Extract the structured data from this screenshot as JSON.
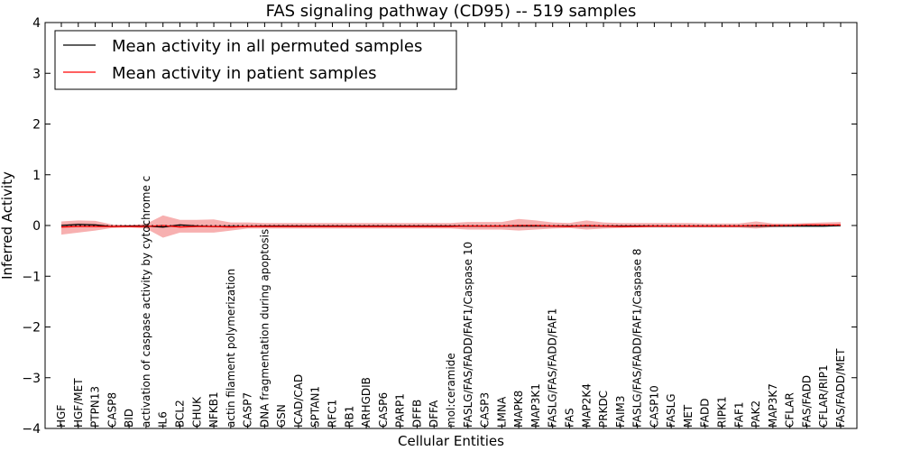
{
  "chart_data": {
    "type": "line",
    "title": "FAS signaling pathway (CD95) -- 519 samples",
    "xlabel": "Cellular Entities",
    "ylabel": "Inferred Activity",
    "ylim": [
      -4,
      4
    ],
    "yticks": [
      "−4",
      "−3",
      "−2",
      "−1",
      "0",
      "1",
      "2",
      "3",
      "4"
    ],
    "ytick_values": [
      -4,
      -3,
      -2,
      -1,
      0,
      1,
      2,
      3,
      4
    ],
    "categories": [
      "HGF",
      "HGF/MET",
      "PTPN13",
      "CASP8",
      "BID",
      "activation of caspase activity by cytochrome c",
      "IL6",
      "BCL2",
      "CHUK",
      "NFKB1",
      "actin filament polymerization",
      "CASP7",
      "DNA fragmentation during apoptosis",
      "GSN",
      "ICAD/CAD",
      "SPTAN1",
      "RFC1",
      "RB1",
      "ARHGDIB",
      "CASP6",
      "PARP1",
      "DFFB",
      "DFFA",
      "mol:ceramide",
      "FASLG/FAS/FADD/FAF1/Caspase 10",
      "CASP3",
      "LMNA",
      "MAPK8",
      "MAP3K1",
      "FASLG/FAS/FADD/FAF1",
      "FAS",
      "MAP2K4",
      "PRKDC",
      "FAIM3",
      "FASLG/FAS/FADD/FAF1/Caspase 8",
      "CASP10",
      "FASLG",
      "MET",
      "FADD",
      "RIPK1",
      "FAF1",
      "PAK2",
      "MAP3K7",
      "CFLAR",
      "FAS/FADD",
      "CFLAR/RIP1",
      "FAS/FADD/MET"
    ],
    "legend_position": "top-left",
    "series": [
      {
        "name": "Mean activity in all permuted samples",
        "color": "#000000",
        "values": [
          0.0,
          0.02,
          0.01,
          -0.02,
          -0.01,
          -0.01,
          -0.03,
          0.01,
          -0.01,
          -0.02,
          -0.02,
          -0.02,
          -0.01,
          -0.01,
          -0.01,
          -0.01,
          -0.01,
          -0.01,
          -0.01,
          -0.01,
          -0.01,
          -0.01,
          -0.01,
          -0.01,
          -0.01,
          -0.01,
          -0.01,
          -0.01,
          -0.01,
          -0.01,
          -0.01,
          -0.01,
          -0.01,
          -0.01,
          -0.01,
          -0.01,
          -0.01,
          -0.01,
          -0.01,
          -0.01,
          -0.01,
          -0.01,
          -0.01,
          -0.01,
          -0.01,
          -0.01,
          0.0
        ],
        "band_lower": [
          -0.03,
          -0.02,
          -0.02,
          -0.03,
          -0.03,
          -0.03,
          -0.05,
          -0.03,
          -0.03,
          -0.04,
          -0.04,
          -0.04,
          -0.04,
          -0.04,
          -0.04,
          -0.04,
          -0.04,
          -0.04,
          -0.04,
          -0.04,
          -0.04,
          -0.04,
          -0.04,
          -0.04,
          -0.04,
          -0.04,
          -0.04,
          -0.04,
          -0.04,
          -0.04,
          -0.04,
          -0.04,
          -0.04,
          -0.04,
          -0.04,
          -0.04,
          -0.04,
          -0.04,
          -0.04,
          -0.04,
          -0.04,
          -0.04,
          -0.04,
          -0.04,
          -0.04,
          -0.04,
          -0.03
        ],
        "band_upper": [
          0.03,
          0.05,
          0.04,
          0.0,
          0.01,
          0.01,
          -0.01,
          0.04,
          0.02,
          0.01,
          0.01,
          0.01,
          0.02,
          0.02,
          0.02,
          0.02,
          0.02,
          0.02,
          0.02,
          0.02,
          0.02,
          0.02,
          0.02,
          0.02,
          0.02,
          0.02,
          0.02,
          0.02,
          0.02,
          0.02,
          0.02,
          0.02,
          0.02,
          0.02,
          0.02,
          0.02,
          0.02,
          0.02,
          0.02,
          0.02,
          0.02,
          0.02,
          0.02,
          0.02,
          0.02,
          0.02,
          0.03
        ]
      },
      {
        "name": "Mean activity in patient samples",
        "color": "#ff0000",
        "values": [
          -0.03,
          -0.02,
          -0.02,
          -0.02,
          -0.02,
          -0.02,
          0.0,
          -0.03,
          -0.02,
          -0.02,
          -0.03,
          -0.02,
          -0.02,
          -0.02,
          -0.02,
          -0.02,
          -0.02,
          -0.02,
          -0.02,
          -0.02,
          -0.02,
          -0.02,
          -0.02,
          -0.02,
          -0.01,
          -0.01,
          -0.01,
          0.0,
          0.0,
          -0.01,
          -0.02,
          0.0,
          -0.01,
          -0.02,
          -0.02,
          -0.01,
          -0.01,
          -0.01,
          -0.01,
          -0.01,
          -0.01,
          0.0,
          0.0,
          0.0,
          0.01,
          0.01,
          0.01
        ],
        "band_lower": [
          -0.18,
          -0.14,
          -0.1,
          -0.05,
          -0.04,
          -0.06,
          -0.24,
          -0.14,
          -0.14,
          -0.14,
          -0.1,
          -0.06,
          -0.06,
          -0.06,
          -0.06,
          -0.06,
          -0.06,
          -0.06,
          -0.06,
          -0.06,
          -0.06,
          -0.06,
          -0.06,
          -0.06,
          -0.08,
          -0.08,
          -0.08,
          -0.1,
          -0.08,
          -0.06,
          -0.05,
          -0.08,
          -0.06,
          -0.05,
          -0.04,
          -0.04,
          -0.04,
          -0.04,
          -0.04,
          -0.04,
          -0.04,
          -0.06,
          -0.03,
          -0.02,
          -0.01,
          -0.01,
          -0.01
        ],
        "band_upper": [
          0.08,
          0.1,
          0.09,
          0.02,
          0.01,
          0.03,
          0.2,
          0.11,
          0.11,
          0.12,
          0.06,
          0.06,
          0.05,
          0.05,
          0.05,
          0.05,
          0.05,
          0.05,
          0.05,
          0.05,
          0.05,
          0.05,
          0.05,
          0.05,
          0.07,
          0.07,
          0.07,
          0.13,
          0.1,
          0.06,
          0.05,
          0.1,
          0.06,
          0.05,
          0.05,
          0.05,
          0.05,
          0.05,
          0.04,
          0.04,
          0.04,
          0.08,
          0.04,
          0.04,
          0.05,
          0.06,
          0.07
        ]
      }
    ]
  }
}
